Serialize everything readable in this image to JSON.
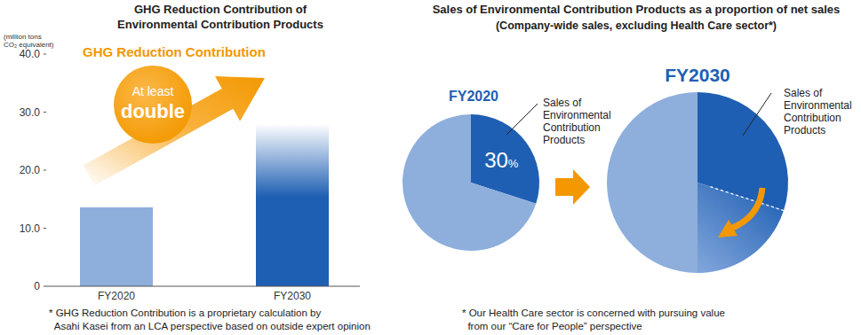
{
  "chart_data": [
    {
      "type": "bar",
      "title": "GHG Reduction Contribution of\nEnvironmental Contribution Products",
      "ylabel": "(million tons\nCO₂ equivalent)",
      "categories": [
        "FY2020",
        "FY2030"
      ],
      "values": [
        13.6,
        28
      ],
      "colors": [
        "#8eaedc",
        "#1f5fb3"
      ],
      "ylim": [
        0,
        40
      ],
      "yticks": [
        0,
        {
          "value": 10,
          "label": "10.0"
        },
        {
          "value": 20,
          "label": "20.0"
        },
        {
          "value": 30,
          "label": "30.0"
        },
        {
          "value": 40,
          "label": "40.0"
        }
      ],
      "grid": false,
      "annotations": [
        "GHG Reduction Contribution",
        "At least",
        "double"
      ],
      "footnote": "* GHG Reduction Contribution is a proprietary calculation by\n  Asahi Kasei from an LCA perspective based on outside expert opinion"
    },
    {
      "type": "pie",
      "title": "Sales of Environmental Contribution Products as a proportion of net sales",
      "subtitle": "(Company-wide sales, excluding Health Care sector*)",
      "data_labels": true,
      "series": [
        {
          "name": "FY2020",
          "categories": [
            "Sales of\nEnvironmental\nContribution\nProducts",
            null
          ],
          "values": [
            30,
            70
          ],
          "value_labels": [
            "30%",
            null
          ],
          "colors": [
            "#1f5fb3",
            "#8eaedc"
          ]
        },
        {
          "name": "FY2030",
          "categories": [
            "Sales of\nEnvironmental\nContribution\nProducts",
            null,
            null
          ],
          "values": [
            30,
            20,
            50
          ],
          "colors": [
            "#1f5fb3",
            "#1f5fb3",
            "#8eaedc"
          ]
        }
      ],
      "footnote": "* Our Health Care sector is concerned with pursuing value\n  from our “Care for People” perspective"
    }
  ]
}
